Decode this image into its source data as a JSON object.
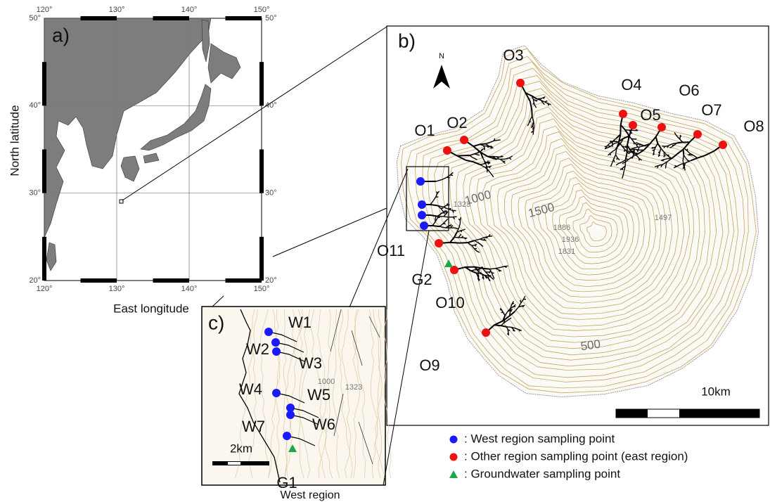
{
  "panel_a": {
    "label": "a)",
    "lon_ticks": [
      "120°",
      "130°",
      "140°",
      "150°"
    ],
    "lat_ticks": [
      "50°",
      "40°",
      "30°",
      "20°"
    ],
    "y_axis_label": "North latitude",
    "x_axis_label": "East longitude"
  },
  "panel_b": {
    "label": "b)",
    "north": "N",
    "east_points": [
      "O1",
      "O2",
      "O3",
      "O4",
      "O5",
      "O6",
      "O7",
      "O8",
      "O9",
      "O10",
      "O11"
    ],
    "groundwater_point": "G2",
    "contour_labels": [
      "1000",
      "1500",
      "500"
    ],
    "elevation_labels": [
      "1323",
      "1886",
      "1936",
      "1831",
      "1497"
    ],
    "scale": "10km"
  },
  "panel_c": {
    "label": "c)",
    "west_points": [
      "W1",
      "W2",
      "W3",
      "W4",
      "W5",
      "W6",
      "W7"
    ],
    "groundwater_point": "G1",
    "elevation_labels": [
      "1000",
      "1323"
    ],
    "scale": "2km",
    "caption": "West region"
  },
  "legend": [
    ": West region sampling point",
    ": Other region sampling point (east region)",
    ": Groundwater sampling point"
  ]
}
